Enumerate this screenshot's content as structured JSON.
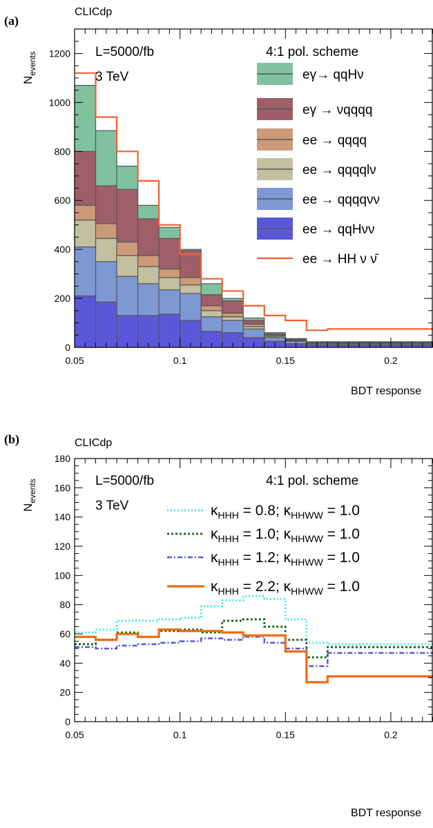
{
  "chart_data": [
    {
      "panel_label": "(a)",
      "type": "bar",
      "stacked": true,
      "header": "CLICdp",
      "annotations": [
        "L=5000/fb",
        "3 TeV",
        "4:1 pol. scheme"
      ],
      "ylabel_main": "N",
      "ylabel_sub": "events",
      "xlabel": "BDT response",
      "xlim": [
        0.05,
        0.22
      ],
      "ylim": [
        0,
        1300
      ],
      "xticks": [
        {
          "value": 0.05,
          "label": "0.05"
        },
        {
          "value": 0.1,
          "label": "0.1"
        },
        {
          "value": 0.15,
          "label": "0.15"
        },
        {
          "value": 0.2,
          "label": "0.2"
        }
      ],
      "yticks": [
        {
          "value": 0,
          "label": "0"
        },
        {
          "value": 200,
          "label": "200"
        },
        {
          "value": 400,
          "label": "400"
        },
        {
          "value": 600,
          "label": "600"
        },
        {
          "value": 800,
          "label": "800"
        },
        {
          "value": 1000,
          "label": "1000"
        },
        {
          "value": 1200,
          "label": "1200"
        }
      ],
      "bin_edges": [
        0.05,
        0.06,
        0.07,
        0.08,
        0.09,
        0.1,
        0.11,
        0.12,
        0.13,
        0.14,
        0.15,
        0.16,
        0.17,
        0.18,
        0.19,
        0.2,
        0.21,
        0.22
      ],
      "legend_position": "top-right",
      "series": [
        {
          "name": "ee → qqHνν",
          "color": "#5a58d8",
          "values": [
            210,
            185,
            130,
            130,
            135,
            110,
            65,
            60,
            40,
            25,
            15,
            10,
            10,
            10,
            10,
            10,
            10
          ]
        },
        {
          "name": "ee → qqqqνν",
          "color": "#7e98d4",
          "values": [
            200,
            165,
            160,
            130,
            100,
            110,
            60,
            50,
            35,
            15,
            10,
            5,
            5,
            5,
            5,
            5,
            5
          ]
        },
        {
          "name": "ee → qqqqlν",
          "color": "#c3c0a0",
          "values": [
            110,
            95,
            85,
            70,
            50,
            35,
            25,
            15,
            10,
            5,
            3,
            2,
            2,
            2,
            2,
            2,
            2
          ]
        },
        {
          "name": "ee → qqqq",
          "color": "#cd9a78",
          "values": [
            60,
            60,
            55,
            45,
            35,
            30,
            20,
            15,
            10,
            5,
            3,
            2,
            2,
            2,
            2,
            2,
            2
          ]
        },
        {
          "name": "eγ → νqqqq",
          "color": "#9e5f68",
          "values": [
            220,
            155,
            215,
            150,
            125,
            110,
            45,
            50,
            15,
            5,
            3,
            2,
            2,
            2,
            2,
            2,
            2
          ]
        },
        {
          "name": "eγ→ qqHν",
          "color": "#80c2a0",
          "values": [
            270,
            225,
            95,
            55,
            45,
            5,
            45,
            10,
            10,
            5,
            2,
            2,
            2,
            2,
            2,
            2,
            2
          ]
        }
      ],
      "signal": {
        "name": "ee → HH ν ν̄",
        "color": "#f06030",
        "values": [
          1120,
          940,
          800,
          680,
          500,
          380,
          280,
          230,
          170,
          130,
          110,
          70,
          75,
          75,
          75,
          75,
          75
        ]
      }
    },
    {
      "panel_label": "(b)",
      "type": "line",
      "step": true,
      "header": "CLICdp",
      "annotations": [
        "L=5000/fb",
        "3 TeV",
        "4:1 pol. scheme"
      ],
      "ylabel_main": "N",
      "ylabel_sub": "events",
      "xlabel": "BDT response",
      "xlim": [
        0.05,
        0.22
      ],
      "ylim": [
        0,
        180
      ],
      "xticks": [
        {
          "value": 0.05,
          "label": "0.05"
        },
        {
          "value": 0.1,
          "label": "0.1"
        },
        {
          "value": 0.15,
          "label": "0.15"
        },
        {
          "value": 0.2,
          "label": "0.2"
        }
      ],
      "yticks": [
        {
          "value": 0,
          "label": "0"
        },
        {
          "value": 20,
          "label": "20"
        },
        {
          "value": 40,
          "label": "40"
        },
        {
          "value": 60,
          "label": "60"
        },
        {
          "value": 80,
          "label": "80"
        },
        {
          "value": 100,
          "label": "100"
        },
        {
          "value": 120,
          "label": "120"
        },
        {
          "value": 140,
          "label": "140"
        },
        {
          "value": 160,
          "label": "160"
        },
        {
          "value": 180,
          "label": "180"
        }
      ],
      "bin_edges": [
        0.05,
        0.06,
        0.07,
        0.08,
        0.09,
        0.1,
        0.11,
        0.12,
        0.13,
        0.14,
        0.15,
        0.16,
        0.17,
        0.18,
        0.19,
        0.2,
        0.21,
        0.22
      ],
      "legend_position": "top-right",
      "series": [
        {
          "name_main": "κ",
          "name_sub1": "HHH",
          "name_mid": " = 0.8; κ",
          "name_sub2": "HHWW",
          "name_end": " = 1.0",
          "color": "#22e8e8",
          "dash": "2,3",
          "width": 2.5,
          "values": [
            61,
            63,
            69,
            69,
            70,
            71,
            79,
            83,
            86,
            84,
            70,
            54,
            53,
            53,
            53,
            53,
            53
          ]
        },
        {
          "name_main": "κ",
          "name_sub1": "HHH",
          "name_mid": " = 1.0; κ",
          "name_sub2": "HHWW",
          "name_end": " = 1.0",
          "color": "#156415",
          "dash": "3,3",
          "width": 2.8,
          "values": [
            53,
            56,
            61,
            58,
            62,
            63,
            61,
            69,
            70,
            65,
            56,
            44,
            51,
            51,
            51,
            51,
            51
          ]
        },
        {
          "name_main": "κ",
          "name_sub1": "HHH",
          "name_mid": " = 1.2; κ",
          "name_sub2": "HHWW",
          "name_end": " = 1.0",
          "color": "#5757d6",
          "dash": "7,3,2,3",
          "width": 2.5,
          "values": [
            51,
            50,
            52,
            53,
            54,
            55,
            57,
            56,
            58,
            54,
            50,
            38,
            47,
            47,
            47,
            47,
            47
          ]
        },
        {
          "name_main": "κ",
          "name_sub1": "HHH",
          "name_mid": " = 2.2; κ",
          "name_sub2": "HHWW",
          "name_end": " = 1.0",
          "color": "#f06a10",
          "dash": "",
          "width": 3.2,
          "values": [
            58,
            56,
            60,
            58,
            63,
            62,
            62,
            61,
            59,
            59,
            48,
            27,
            31,
            31,
            31,
            31,
            31
          ]
        }
      ]
    }
  ]
}
